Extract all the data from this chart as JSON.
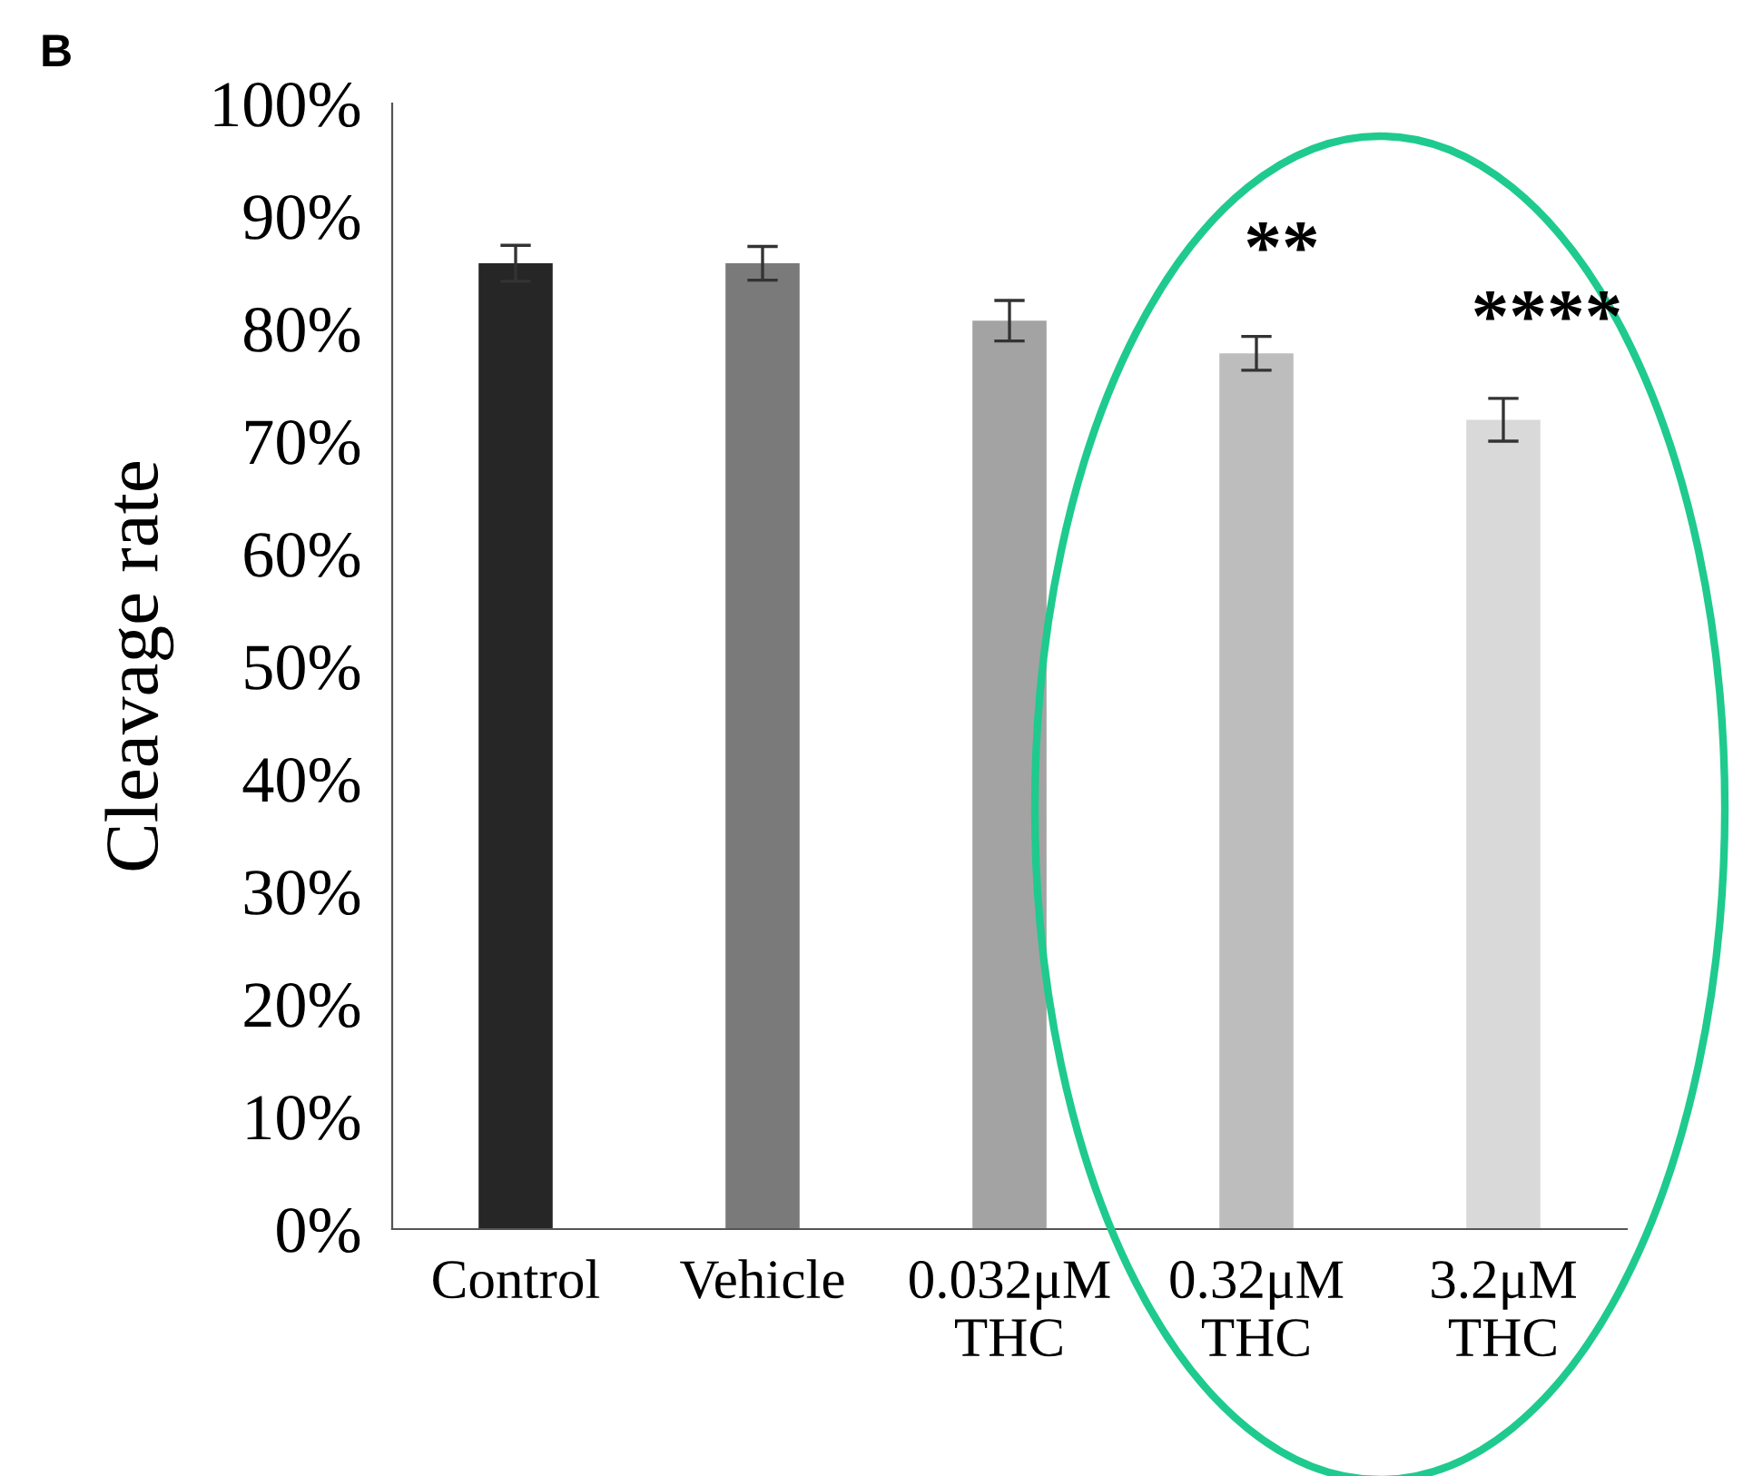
{
  "chart_data": {
    "type": "bar",
    "ylabel": "Cleavage rate",
    "categories": [
      "Control",
      "Vehicle",
      "0.032μM\nTHC",
      "0.32μM\nTHC",
      "3.2μM\nTHC"
    ],
    "values": [
      85.8,
      85.8,
      80.7,
      77.8,
      71.9
    ],
    "errors": [
      1.6,
      1.5,
      1.8,
      1.5,
      1.9
    ],
    "colors": [
      "#262626",
      "#7a7a7a",
      "#a3a3a3",
      "#bdbdbd",
      "#d9d9d9"
    ],
    "ylim": [
      0,
      100
    ],
    "yticks": [
      {
        "value": 0,
        "label": "0%"
      },
      {
        "value": 10,
        "label": "10%"
      },
      {
        "value": 20,
        "label": "20%"
      },
      {
        "value": 30,
        "label": "30%"
      },
      {
        "value": 40,
        "label": "40%"
      },
      {
        "value": 50,
        "label": "50%"
      },
      {
        "value": 60,
        "label": "60%"
      },
      {
        "value": 70,
        "label": "70%"
      },
      {
        "value": 80,
        "label": "80%"
      },
      {
        "value": 90,
        "label": "90%"
      },
      {
        "value": 100,
        "label": "100%"
      }
    ],
    "grid": false,
    "legend": false,
    "annotations": [
      "B",
      "**",
      "****"
    ]
  }
}
